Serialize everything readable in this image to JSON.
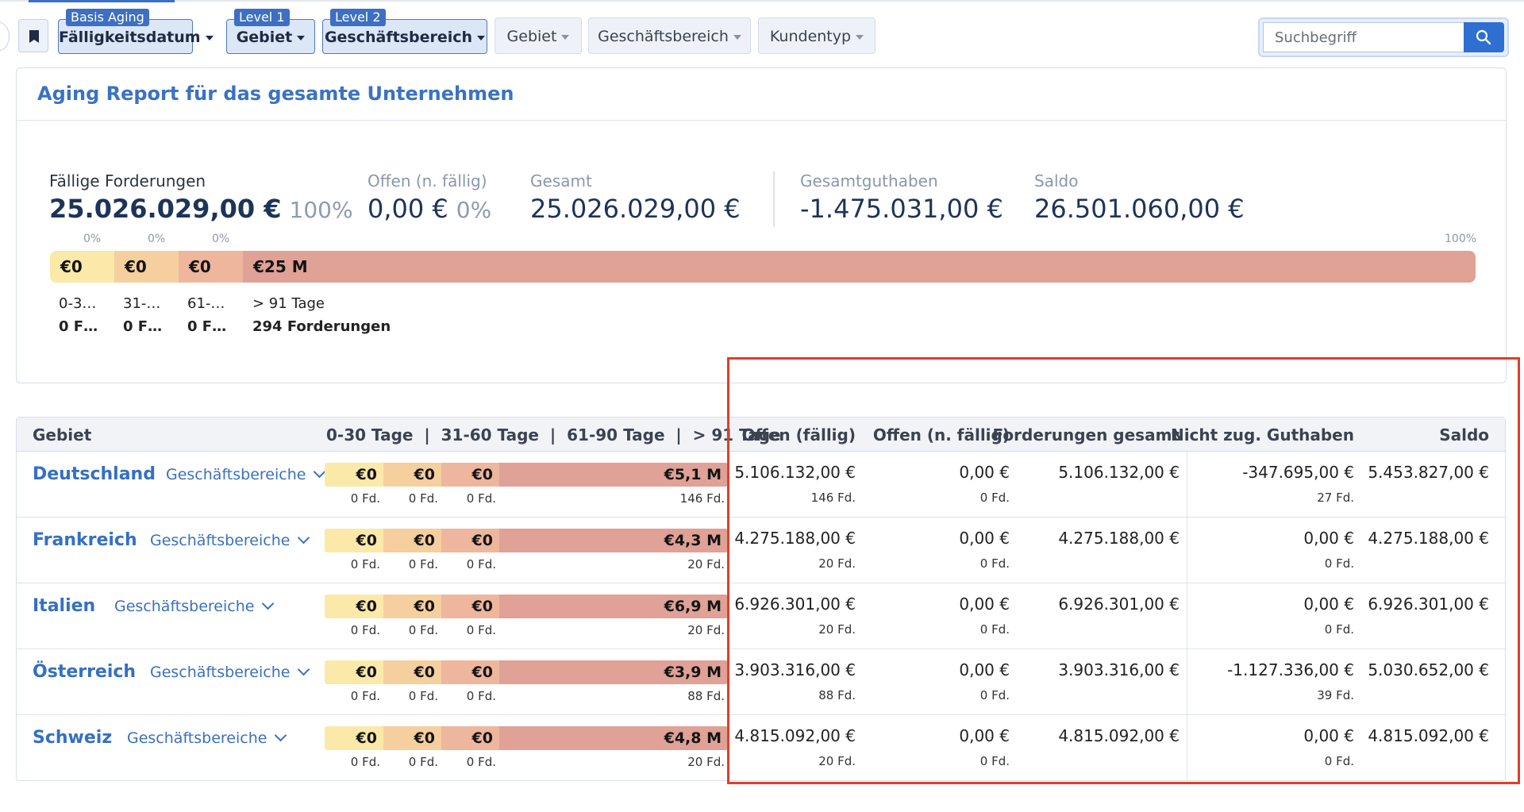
{
  "toolbar": {
    "bookmark_icon": "bookmark-icon",
    "levels": [
      {
        "tag": "Basis Aging",
        "label": "Fälligkeitsdatum"
      },
      {
        "tag": "Level 1",
        "label": "Gebiet"
      },
      {
        "tag": "Level 2",
        "label": "Geschäftsbereich"
      }
    ],
    "filters": [
      "Gebiet",
      "Geschäftsbereich",
      "Kundentyp"
    ],
    "search_placeholder": "Suchbegriff",
    "search_icon": "search-icon"
  },
  "report": {
    "title": "Aging Report für das gesamte Unternehmen",
    "kpis": {
      "faellig_label": "Fällige Forderungen",
      "faellig_value": "25.026.029,00 €",
      "faellig_pct": "100%",
      "offen_label": "Offen (n. fällig)",
      "offen_value": "0,00 €",
      "offen_pct": "0%",
      "gesamt_label": "Gesamt",
      "gesamt_value": "25.026.029,00 €",
      "guthaben_label": "Gesamtguthaben",
      "guthaben_value": "-1.475.031,00 €",
      "saldo_label": "Saldo",
      "saldo_value": "26.501.060,00 €"
    },
    "aging_bar": {
      "segments": [
        {
          "value": "€0",
          "pct_label": "0%",
          "share": 0.0,
          "range": "0-3…",
          "count": "0 F…",
          "color": "#fbe9a9"
        },
        {
          "value": "€0",
          "pct_label": "0%",
          "share": 0.0,
          "range": "31-…",
          "count": "0 F…",
          "color": "#f6cf9e"
        },
        {
          "value": "€0",
          "pct_label": "0%",
          "share": 0.0,
          "range": "61-…",
          "count": "0 F…",
          "color": "#eeb69d"
        },
        {
          "value": "€25 M",
          "pct_label": "100%",
          "share": 1.0,
          "range": "> 91 Tage",
          "count": "294 Forderungen",
          "color": "#e0a196"
        }
      ]
    }
  },
  "table": {
    "headers": {
      "gebiet": "Gebiet",
      "aging": "0-30 Tage  |  31-60 Tage  |  61-90 Tage  |  > 91 Tage",
      "offen_faellig": "Offen (fällig)",
      "offen_n_faellig": "Offen (n. fällig)",
      "forderungen_gesamt": "Forderungen gesamt",
      "nicht_zug_guthaben": "Nicht zug. Guthaben",
      "saldo": "Saldo"
    },
    "business_areas_label": "Geschäftsbereiche",
    "rows": [
      {
        "name": "Deutschland",
        "b1": "€0",
        "b2": "€0",
        "b3": "€0",
        "b4": "€5,1 M",
        "c1": "0 Fd.",
        "c2": "0 Fd.",
        "c3": "0 Fd.",
        "c4": "146 Fd.",
        "offen_faellig": "5.106.132,00 €",
        "offen_faellig_fd": "146 Fd.",
        "offen_n": "0,00 €",
        "offen_n_fd": "0 Fd.",
        "gesamt": "5.106.132,00 €",
        "guthaben": "-347.695,00 €",
        "guthaben_fd": "27 Fd.",
        "saldo": "5.453.827,00 €"
      },
      {
        "name": "Frankreich",
        "b1": "€0",
        "b2": "€0",
        "b3": "€0",
        "b4": "€4,3 M",
        "c1": "0 Fd.",
        "c2": "0 Fd.",
        "c3": "0 Fd.",
        "c4": "20 Fd.",
        "offen_faellig": "4.275.188,00 €",
        "offen_faellig_fd": "20 Fd.",
        "offen_n": "0,00 €",
        "offen_n_fd": "0 Fd.",
        "gesamt": "4.275.188,00 €",
        "guthaben": "0,00 €",
        "guthaben_fd": "0 Fd.",
        "saldo": "4.275.188,00 €"
      },
      {
        "name": "Italien",
        "b1": "€0",
        "b2": "€0",
        "b3": "€0",
        "b4": "€6,9 M",
        "c1": "0 Fd.",
        "c2": "0 Fd.",
        "c3": "0 Fd.",
        "c4": "20 Fd.",
        "offen_faellig": "6.926.301,00 €",
        "offen_faellig_fd": "20 Fd.",
        "offen_n": "0,00 €",
        "offen_n_fd": "0 Fd.",
        "gesamt": "6.926.301,00 €",
        "guthaben": "0,00 €",
        "guthaben_fd": "0 Fd.",
        "saldo": "6.926.301,00 €"
      },
      {
        "name": "Österreich",
        "b1": "€0",
        "b2": "€0",
        "b3": "€0",
        "b4": "€3,9 M",
        "c1": "0 Fd.",
        "c2": "0 Fd.",
        "c3": "0 Fd.",
        "c4": "88 Fd.",
        "offen_faellig": "3.903.316,00 €",
        "offen_faellig_fd": "88 Fd.",
        "offen_n": "0,00 €",
        "offen_n_fd": "0 Fd.",
        "gesamt": "3.903.316,00 €",
        "guthaben": "-1.127.336,00 €",
        "guthaben_fd": "39 Fd.",
        "saldo": "5.030.652,00 €"
      },
      {
        "name": "Schweiz",
        "b1": "€0",
        "b2": "€0",
        "b3": "€0",
        "b4": "€4,8 M",
        "c1": "0 Fd.",
        "c2": "0 Fd.",
        "c3": "0 Fd.",
        "c4": "20 Fd.",
        "offen_faellig": "4.815.092,00 €",
        "offen_faellig_fd": "20 Fd.",
        "offen_n": "0,00 €",
        "offen_n_fd": "0 Fd.",
        "gesamt": "4.815.092,00 €",
        "guthaben": "0,00 €",
        "guthaben_fd": "0 Fd.",
        "saldo": "4.815.092,00 €"
      }
    ]
  },
  "colors": {
    "accent": "#3470c3",
    "bucket_0_30": "#fbe9a9",
    "bucket_31_60": "#f6cf9e",
    "bucket_61_90": "#eeb69d",
    "bucket_91_plus": "#e0a196",
    "highlight": "#e03e2b"
  }
}
